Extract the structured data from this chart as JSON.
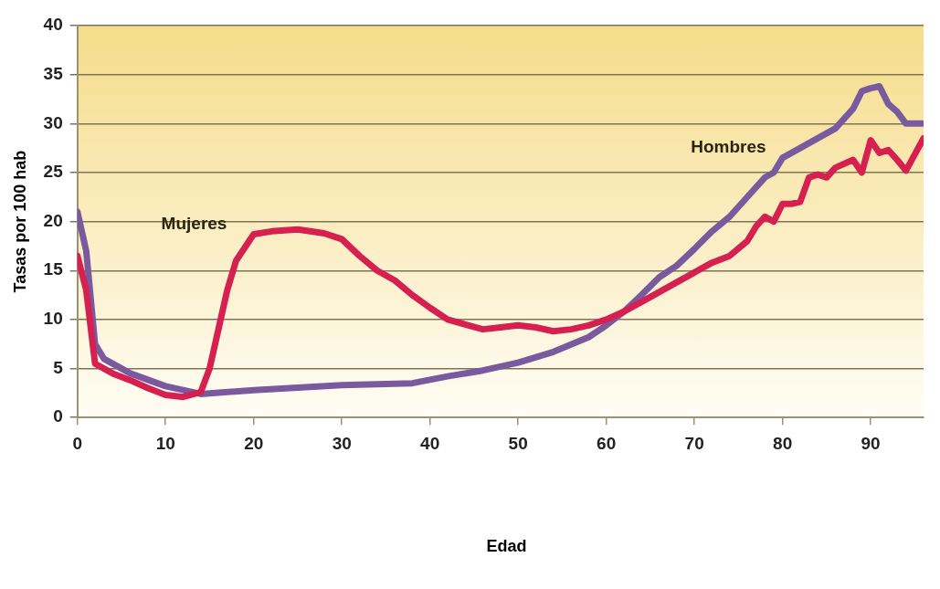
{
  "chart_data": {
    "type": "line",
    "annotations": [
      "Edad"
    ],
    "ylabel": "Tasas por 100 hab",
    "xlim": [
      0,
      96
    ],
    "xticks": [
      0,
      10,
      20,
      30,
      40,
      50,
      60,
      70,
      80,
      90
    ],
    "ylim": [
      0,
      40
    ],
    "yticks": [
      0,
      5,
      10,
      15,
      20,
      25,
      30,
      35,
      40
    ],
    "grid": "y",
    "legend": false,
    "marker": "none",
    "line_style": "solid",
    "series": [
      {
        "name": "Mujeres",
        "color": "#d62050",
        "x": [
          0,
          1,
          2,
          4,
          6,
          8,
          10,
          12,
          14,
          15,
          16,
          17,
          18,
          20,
          22,
          25,
          28,
          30,
          32,
          34,
          36,
          38,
          40,
          42,
          44,
          46,
          48,
          50,
          52,
          54,
          56,
          58,
          60,
          62,
          64,
          66,
          68,
          70,
          72,
          74,
          76,
          77,
          78,
          79,
          80,
          81,
          82,
          83,
          84,
          85,
          86,
          88,
          89,
          90,
          91,
          92,
          93,
          94,
          96
        ],
        "values": [
          16.5,
          13,
          5.5,
          4.5,
          3.8,
          3,
          2.3,
          2.1,
          2.6,
          5,
          9,
          13,
          16,
          18.7,
          19,
          19.2,
          18.8,
          18.2,
          16.5,
          15,
          14,
          12.5,
          11.2,
          10,
          9.5,
          9,
          9.2,
          9.4,
          9.2,
          8.8,
          9,
          9.4,
          10,
          10.8,
          11.8,
          12.8,
          13.8,
          14.8,
          15.8,
          16.5,
          18,
          19.5,
          20.5,
          20,
          21.8,
          21.8,
          22,
          24.5,
          24.8,
          24.5,
          25.5,
          26.3,
          25,
          28.3,
          27,
          27.3,
          26.3,
          25.2,
          28.5
        ]
      },
      {
        "name": "Hombres",
        "color": "#7a5a9e",
        "x": [
          0,
          1,
          2,
          3,
          6,
          10,
          14,
          20,
          30,
          38,
          42,
          46,
          50,
          54,
          58,
          60,
          62,
          64,
          66,
          68,
          70,
          72,
          74,
          76,
          78,
          79,
          80,
          82,
          84,
          86,
          88,
          89,
          90,
          91,
          92,
          93,
          94,
          96
        ],
        "values": [
          21,
          17,
          7.5,
          6,
          4.5,
          3.2,
          2.4,
          2.8,
          3.3,
          3.5,
          4.2,
          4.8,
          5.6,
          6.7,
          8.2,
          9.4,
          10.8,
          12.5,
          14.3,
          15.5,
          17.2,
          19,
          20.5,
          22.5,
          24.5,
          25,
          26.5,
          27.5,
          28.5,
          29.5,
          31.5,
          33.3,
          33.6,
          33.8,
          32,
          31.2,
          30,
          30
        ]
      }
    ]
  }
}
